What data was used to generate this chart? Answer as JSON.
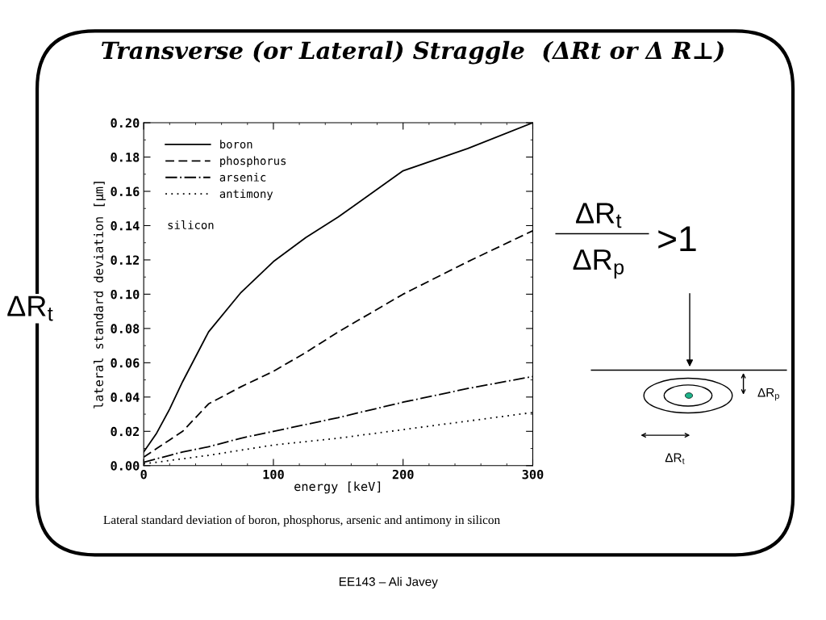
{
  "chart_data": {
    "type": "line",
    "title": "Transverse (or Lateral) Straggle  (ΔRt or Δ R⊥)",
    "xlabel": "energy [keV]",
    "ylabel": "lateral standard deviation [μm]",
    "xlim": [
      0,
      300
    ],
    "xticks": [
      0,
      100,
      200,
      300
    ],
    "ylim": [
      0,
      0.2
    ],
    "yticks": [
      {
        "value": 0,
        "label": "0.00"
      },
      {
        "value": 0.02,
        "label": "0.02"
      },
      {
        "value": 0.04,
        "label": "0.04"
      },
      {
        "value": 0.06,
        "label": "0.06"
      },
      {
        "value": 0.08,
        "label": "0.08"
      },
      {
        "value": 0.1,
        "label": "0.10"
      },
      {
        "value": 0.12,
        "label": "0.12"
      },
      {
        "value": 0.14,
        "label": "0.14"
      },
      {
        "value": 0.16,
        "label": "0.16"
      },
      {
        "value": 0.18,
        "label": "0.18"
      },
      {
        "value": 0.2,
        "label": "0.20"
      }
    ],
    "x": [
      0,
      10,
      20,
      30,
      50,
      75,
      100,
      125,
      150,
      200,
      250,
      300
    ],
    "series": [
      {
        "name": "boron",
        "color": "#000000",
        "line_style": "solid",
        "values": [
          0.008,
          0.019,
          0.033,
          0.049,
          0.078,
          0.101,
          0.119,
          0.133,
          0.145,
          0.172,
          0.185,
          0.2
        ]
      },
      {
        "name": "phosphorus",
        "color": "#000000",
        "line_style": "dashed",
        "values": [
          0.005,
          0.01,
          0.015,
          0.02,
          0.036,
          0.046,
          0.055,
          0.066,
          0.078,
          0.1,
          0.119,
          0.137
        ]
      },
      {
        "name": "arsenic",
        "color": "#000000",
        "line_style": "dashdot",
        "values": [
          0.002,
          0.004,
          0.006,
          0.008,
          0.011,
          0.016,
          0.02,
          0.024,
          0.028,
          0.037,
          0.045,
          0.052
        ]
      },
      {
        "name": "antimony",
        "color": "#000000",
        "line_style": "dotted",
        "values": [
          0.001,
          0.002,
          0.003,
          0.004,
          0.006,
          0.009,
          0.012,
          0.014,
          0.016,
          0.021,
          0.026,
          0.031
        ]
      }
    ],
    "legend": "top left",
    "grid": false,
    "annotations": [
      "silicon",
      "Lateral standard deviation of boron, phosphorus, arsenic and antimony in silicon",
      "EE143 – Ali Javey",
      "ΔR$_{t}$",
      "ΔR$_{t}$",
      "ΔR$_{p}$",
      ">1",
      "ΔR$_{p}$",
      "ΔR$_{t}$"
    ]
  }
}
